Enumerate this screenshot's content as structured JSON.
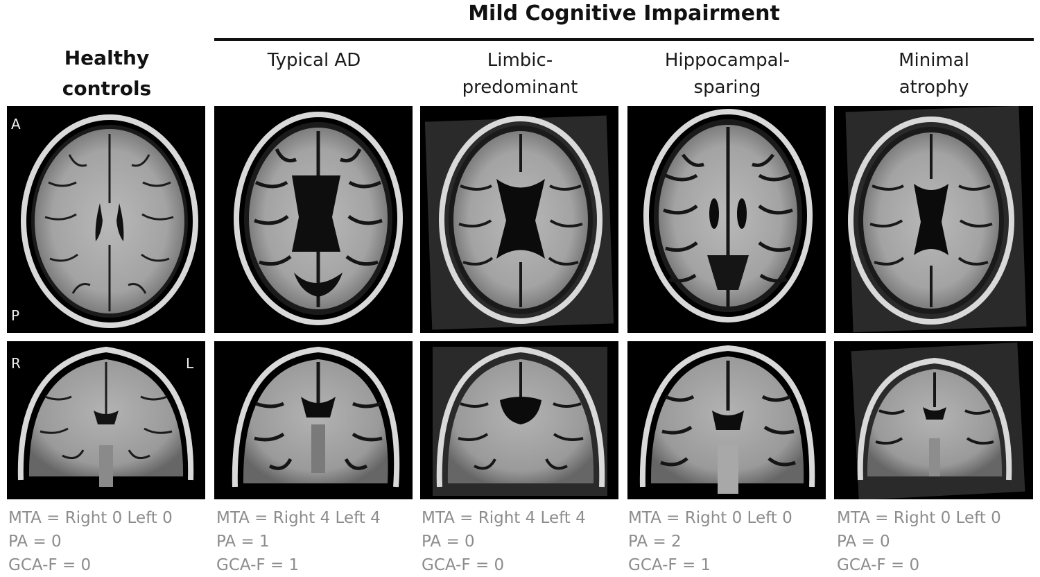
{
  "header": {
    "group_title": "Mild Cognitive Impairment",
    "controls_title_line1": "Healthy",
    "controls_title_line2": "controls"
  },
  "columns": [
    {
      "id": "healthy",
      "title_line1": "Healthy",
      "title_line2": "controls",
      "mta": "MTA = Right 0 Left 0",
      "pa": "PA = 0",
      "gca": "GCA-F = 0"
    },
    {
      "id": "typical",
      "title_line1": "Typical AD",
      "title_line2": "",
      "mta": "MTA = Right 4 Left 4",
      "pa": "PA = 1",
      "gca": "GCA-F = 1"
    },
    {
      "id": "limbic",
      "title_line1": "Limbic-",
      "title_line2": "predominant",
      "mta": "MTA = Right 4 Left 4",
      "pa": "PA = 0",
      "gca": "GCA-F = 0"
    },
    {
      "id": "hippo",
      "title_line1": "Hippocampal-",
      "title_line2": "sparing",
      "mta": "MTA = Right 0 Left 0",
      "pa": "PA = 2",
      "gca": "GCA-F = 1"
    },
    {
      "id": "minimal",
      "title_line1": "Minimal",
      "title_line2": "atrophy",
      "mta": "MTA = Right 0 Left 0",
      "pa": "PA = 0",
      "gca": "GCA-F = 0"
    }
  ],
  "orientation": {
    "anterior": "A",
    "posterior": "P",
    "right": "R",
    "left": "L"
  },
  "colors": {
    "background": "#ffffff",
    "scan_background": "#000000",
    "score_text": "#8c8c8c",
    "title_text": "#111111"
  }
}
